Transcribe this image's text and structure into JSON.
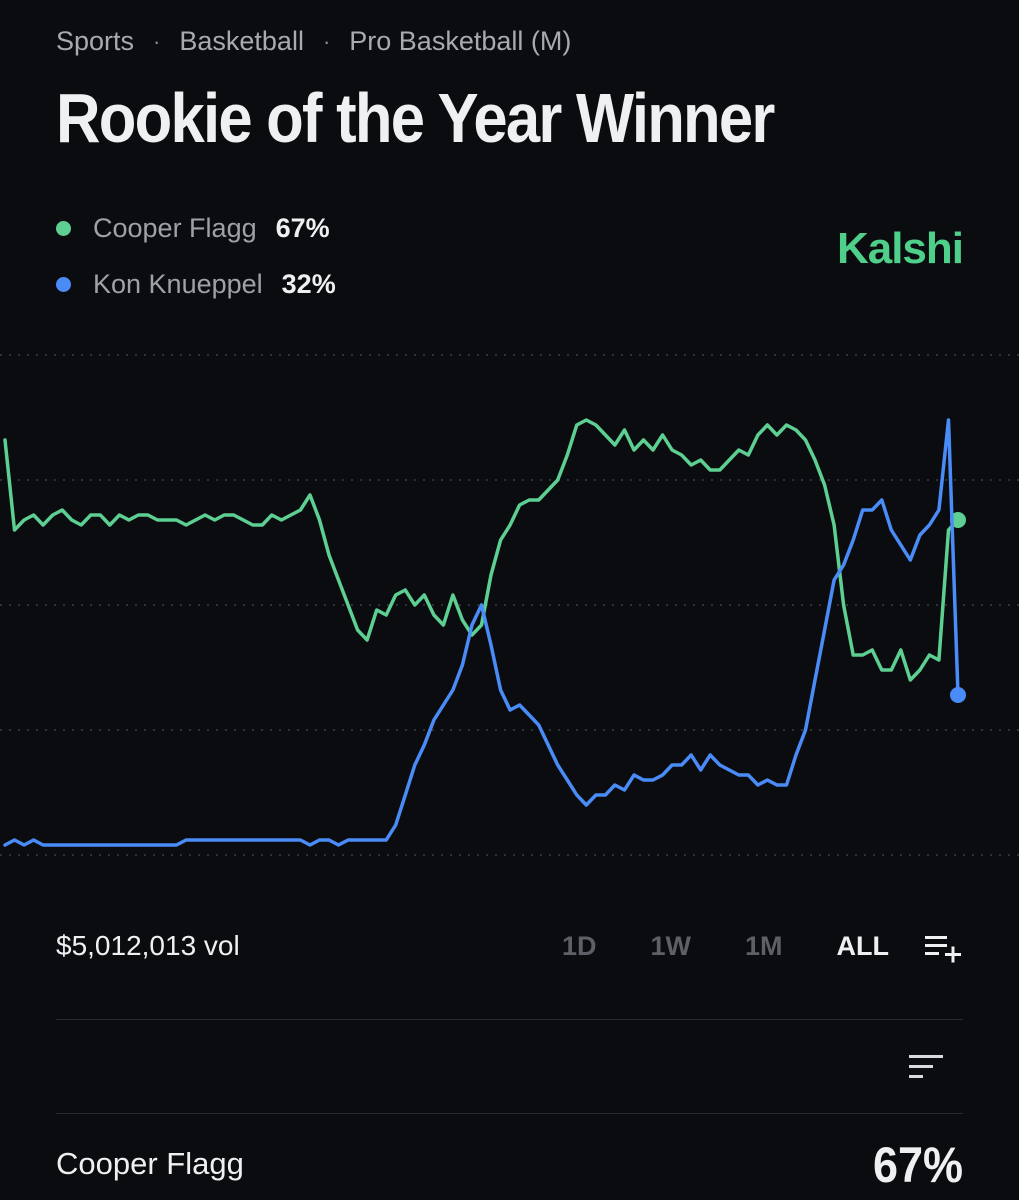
{
  "breadcrumb": {
    "items": [
      "Sports",
      "Basketball",
      "Pro Basketball (M)"
    ],
    "separator": "·"
  },
  "market": {
    "title": "Rookie of the Year Winner",
    "volume": "$5,012,013 vol"
  },
  "brand": {
    "name": "Kalshi",
    "color": "#4ed08a"
  },
  "legend": [
    {
      "name": "Cooper Flagg",
      "pct": "67%",
      "color": "#5ecf92"
    },
    {
      "name": "Kon Knueppel",
      "pct": "32%",
      "color": "#4a8cf7"
    }
  ],
  "range_tabs": [
    {
      "label": "1D",
      "active": false
    },
    {
      "label": "1W",
      "active": false
    },
    {
      "label": "1M",
      "active": false
    },
    {
      "label": "ALL",
      "active": true
    }
  ],
  "icons": {
    "list_add": "list-add-icon",
    "sort": "sort-icon"
  },
  "outcomes": [
    {
      "name": "Cooper Flagg",
      "pct": "67%"
    }
  ],
  "chart_data": {
    "type": "line",
    "grid": true,
    "ylim": [
      0,
      100
    ],
    "x": [
      0,
      1,
      2,
      3,
      4,
      5,
      6,
      7,
      8,
      9,
      10,
      11,
      12,
      13,
      14,
      15,
      16,
      17,
      18,
      19,
      20,
      21,
      22,
      23,
      24,
      25,
      26,
      27,
      28,
      29,
      30,
      31,
      32,
      33,
      34,
      35,
      36,
      37,
      38,
      39,
      40,
      41,
      42,
      43,
      44,
      45,
      46,
      47,
      48,
      49,
      50,
      51,
      52,
      53,
      54,
      55,
      56,
      57,
      58,
      59,
      60,
      61,
      62,
      63,
      64,
      65,
      66,
      67,
      68,
      69,
      70,
      71,
      72,
      73,
      74,
      75,
      76,
      77,
      78,
      79,
      80,
      81,
      82,
      83,
      84,
      85,
      86,
      87,
      88,
      89,
      90,
      91,
      92,
      93,
      94,
      95,
      96,
      97,
      98,
      99,
      100
    ],
    "series": [
      {
        "name": "Cooper Flagg",
        "color": "#5ecf92",
        "values": [
          83,
          65,
          67,
          68,
          66,
          68,
          69,
          67,
          66,
          68,
          68,
          66,
          68,
          67,
          68,
          68,
          67,
          67,
          67,
          66,
          67,
          68,
          67,
          68,
          68,
          67,
          66,
          66,
          68,
          67,
          68,
          69,
          72,
          67,
          60,
          55,
          50,
          45,
          43,
          49,
          48,
          52,
          53,
          50,
          52,
          48,
          46,
          52,
          47,
          44,
          46,
          56,
          63,
          66,
          70,
          71,
          71,
          73,
          75,
          80,
          86,
          87,
          86,
          84,
          82,
          85,
          81,
          83,
          81,
          84,
          81,
          80,
          78,
          79,
          77,
          77,
          79,
          81,
          80,
          84,
          86,
          84,
          86,
          85,
          83,
          79,
          74,
          66,
          50,
          40,
          40,
          41,
          37,
          37,
          41,
          35,
          37,
          40,
          39,
          65,
          67
        ]
      },
      {
        "name": "Kon Knueppel",
        "color": "#4a8cf7",
        "values": [
          2,
          3,
          2,
          3,
          2,
          2,
          2,
          2,
          2,
          2,
          2,
          2,
          2,
          2,
          2,
          2,
          2,
          2,
          2,
          3,
          3,
          3,
          3,
          3,
          3,
          3,
          3,
          3,
          3,
          3,
          3,
          3,
          2,
          3,
          3,
          2,
          3,
          3,
          3,
          3,
          3,
          6,
          12,
          18,
          22,
          27,
          30,
          33,
          38,
          46,
          50,
          42,
          33,
          29,
          30,
          28,
          26,
          22,
          18,
          15,
          12,
          10,
          12,
          12,
          14,
          13,
          16,
          15,
          15,
          16,
          18,
          18,
          20,
          17,
          20,
          18,
          17,
          16,
          16,
          14,
          15,
          14,
          14,
          20,
          25,
          35,
          45,
          55,
          58,
          63,
          69,
          69,
          71,
          65,
          62,
          59,
          64,
          66,
          69,
          87,
          32
        ]
      }
    ]
  }
}
